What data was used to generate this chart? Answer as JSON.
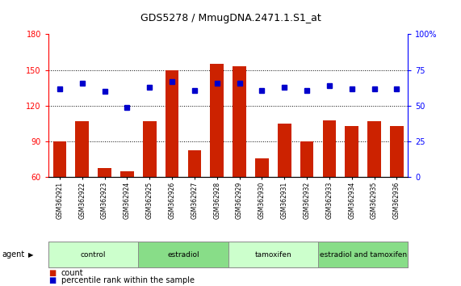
{
  "title": "GDS5278 / MmugDNA.2471.1.S1_at",
  "samples": [
    "GSM362921",
    "GSM362922",
    "GSM362923",
    "GSM362924",
    "GSM362925",
    "GSM362926",
    "GSM362927",
    "GSM362928",
    "GSM362929",
    "GSM362930",
    "GSM362931",
    "GSM362932",
    "GSM362933",
    "GSM362934",
    "GSM362935",
    "GSM362936"
  ],
  "bar_values": [
    90,
    107,
    68,
    65,
    107,
    150,
    83,
    155,
    153,
    76,
    105,
    90,
    108,
    103,
    107,
    103
  ],
  "dot_values": [
    62,
    66,
    60,
    49,
    63,
    67,
    61,
    66,
    66,
    61,
    63,
    61,
    64,
    62,
    62,
    62
  ],
  "bar_color": "#cc2200",
  "dot_color": "#0000cc",
  "ylim_left": [
    60,
    180
  ],
  "ylim_right": [
    0,
    100
  ],
  "yticks_left": [
    60,
    90,
    120,
    150,
    180
  ],
  "yticks_right": [
    0,
    25,
    50,
    75,
    100
  ],
  "ytick_labels_right": [
    "0",
    "25",
    "50",
    "75",
    "100%"
  ],
  "groups": [
    {
      "label": "control",
      "start": 0,
      "end": 3,
      "color": "#ccffcc"
    },
    {
      "label": "estradiol",
      "start": 4,
      "end": 7,
      "color": "#88dd88"
    },
    {
      "label": "tamoxifen",
      "start": 8,
      "end": 11,
      "color": "#ccffcc"
    },
    {
      "label": "estradiol and tamoxifen",
      "start": 12,
      "end": 15,
      "color": "#88dd88"
    }
  ],
  "agent_label": "agent",
  "legend_count_label": "count",
  "legend_pct_label": "percentile rank within the sample",
  "background_color": "#ffffff",
  "bar_width": 0.6,
  "dotted_lines": [
    90,
    120,
    150
  ]
}
